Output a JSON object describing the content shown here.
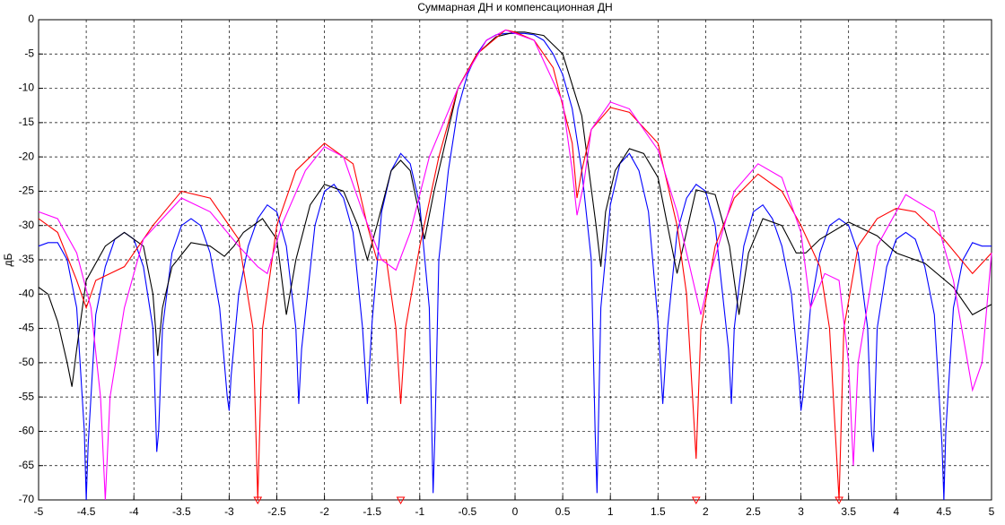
{
  "chart_data": {
    "type": "line",
    "title": "Суммарная ДН и компенсационная ДН",
    "y_label": "дБ",
    "xlim": [
      -5,
      5
    ],
    "ylim": [
      -70,
      0
    ],
    "xticks": [
      -5,
      -4.5,
      -4,
      -3.5,
      -3,
      -2.5,
      -2,
      -1.5,
      -1,
      -0.5,
      0,
      0.5,
      1,
      1.5,
      2,
      2.5,
      3,
      3.5,
      4,
      4.5,
      5
    ],
    "yticks": [
      -70,
      -65,
      -60,
      -55,
      -50,
      -45,
      -40,
      -35,
      -30,
      -25,
      -20,
      -15,
      -10,
      -5,
      0
    ],
    "grid": true,
    "series": [
      {
        "color": "#0000ff",
        "x": [
          -5,
          -4.9,
          -4.8,
          -4.7,
          -4.6,
          -4.52,
          -4.5,
          -4.48,
          -4.4,
          -4.3,
          -4.2,
          -4.1,
          -4,
          -3.9,
          -3.8,
          -3.76,
          -3.74,
          -3.7,
          -3.6,
          -3.5,
          -3.4,
          -3.3,
          -3.2,
          -3.1,
          -3.02,
          -3,
          -2.98,
          -2.9,
          -2.8,
          -2.7,
          -2.6,
          -2.5,
          -2.4,
          -2.3,
          -2.27,
          -2.24,
          -2.1,
          -2,
          -1.9,
          -1.8,
          -1.7,
          -1.6,
          -1.55,
          -1.5,
          -1.4,
          -1.3,
          -1.2,
          -1.1,
          -1,
          -0.9,
          -0.86,
          -0.84,
          -0.8,
          -0.7,
          -0.6,
          -0.5,
          -0.4,
          -0.3,
          -0.2,
          -0.1,
          0,
          0.1,
          0.2,
          0.3,
          0.4,
          0.5,
          0.6,
          0.7,
          0.8,
          0.84,
          0.86,
          0.9,
          1,
          1.1,
          1.2,
          1.3,
          1.4,
          1.5,
          1.55,
          1.6,
          1.7,
          1.8,
          1.9,
          2,
          2.1,
          2.24,
          2.27,
          2.3,
          2.4,
          2.5,
          2.6,
          2.7,
          2.8,
          2.9,
          2.98,
          3,
          3.02,
          3.1,
          3.2,
          3.3,
          3.4,
          3.5,
          3.6,
          3.7,
          3.74,
          3.76,
          3.8,
          3.9,
          4,
          4.1,
          4.2,
          4.3,
          4.4,
          4.48,
          4.5,
          4.52,
          4.6,
          4.7,
          4.8,
          4.9,
          5
        ],
        "values": [
          -33,
          -32.5,
          -32.5,
          -35,
          -42,
          -60,
          -70,
          -62,
          -43,
          -36,
          -32,
          -31,
          -32,
          -36,
          -45,
          -63,
          -60,
          -45,
          -34,
          -30,
          -29,
          -30,
          -34,
          -42,
          -55,
          -57,
          -52,
          -40,
          -33,
          -29,
          -27,
          -28,
          -33,
          -45,
          -56,
          -48,
          -30,
          -25,
          -24,
          -26,
          -31,
          -45,
          -56,
          -44,
          -28,
          -22,
          -19.5,
          -21,
          -27,
          -42,
          -69,
          -60,
          -35,
          -22,
          -13,
          -8,
          -5,
          -3,
          -2.2,
          -2,
          -2,
          -2,
          -2.2,
          -3,
          -5,
          -8,
          -13,
          -22,
          -35,
          -60,
          -69,
          -42,
          -27,
          -21,
          -19.5,
          -22,
          -28,
          -44,
          -56,
          -45,
          -31,
          -26,
          -24,
          -25,
          -30,
          -48,
          -56,
          -45,
          -33,
          -28,
          -27,
          -29,
          -33,
          -40,
          -52,
          -57,
          -55,
          -42,
          -34,
          -30,
          -29,
          -30,
          -34,
          -45,
          -60,
          -63,
          -45,
          -36,
          -32,
          -31,
          -32,
          -36,
          -43,
          -62,
          -70,
          -60,
          -42,
          -35,
          -32.5,
          -33,
          -33
        ]
      },
      {
        "color": "#000000",
        "x": [
          -5,
          -4.9,
          -4.8,
          -4.7,
          -4.65,
          -4.6,
          -4.5,
          -4.3,
          -4.1,
          -3.9,
          -3.8,
          -3.75,
          -3.7,
          -3.6,
          -3.4,
          -3.2,
          -3.05,
          -2.95,
          -2.85,
          -2.65,
          -2.5,
          -2.4,
          -2.3,
          -2.15,
          -2,
          -1.8,
          -1.65,
          -1.55,
          -1.45,
          -1.3,
          -1.2,
          -1.1,
          -0.95,
          -0.85,
          -0.6,
          -0.4,
          -0.2,
          0,
          0.1,
          0.3,
          0.5,
          0.7,
          0.85,
          0.9,
          0.95,
          1.05,
          1.2,
          1.35,
          1.5,
          1.6,
          1.7,
          1.9,
          2.1,
          2.25,
          2.35,
          2.45,
          2.6,
          2.8,
          2.95,
          3.05,
          3.2,
          3.5,
          3.8,
          4,
          4.3,
          4.6,
          4.8,
          5
        ],
        "values": [
          -39,
          -40,
          -44,
          -50,
          -53.5,
          -48,
          -38,
          -33,
          -31,
          -33,
          -40,
          -49,
          -42,
          -36,
          -32.5,
          -33,
          -34.5,
          -33,
          -31,
          -29,
          -32,
          -43,
          -35,
          -27,
          -24,
          -25,
          -30,
          -35,
          -30,
          -22,
          -20.5,
          -22,
          -32,
          -25,
          -10,
          -5,
          -2.5,
          -1.8,
          -1.8,
          -2.3,
          -5,
          -14,
          -30,
          -36,
          -28,
          -22,
          -18.8,
          -19.5,
          -23,
          -30,
          -37,
          -24.8,
          -25.5,
          -33,
          -43,
          -34,
          -29,
          -30,
          -34,
          -34,
          -32,
          -29.5,
          -31.5,
          -34,
          -35.5,
          -39,
          -43,
          -41.5
        ]
      },
      {
        "color": "#ff0000",
        "x": [
          -5,
          -4.8,
          -4.6,
          -4.5,
          -4.4,
          -4.1,
          -3.8,
          -3.5,
          -3.2,
          -2.9,
          -2.75,
          -2.7,
          -2.65,
          -2.5,
          -2.3,
          -2,
          -1.7,
          -1.55,
          -1.45,
          -1.35,
          -1.25,
          -1.2,
          -1.15,
          -1,
          -0.8,
          -0.6,
          -0.4,
          -0.1,
          0,
          0.2,
          0.4,
          0.6,
          0.65,
          0.7,
          0.8,
          1,
          1.2,
          1.5,
          1.7,
          1.8,
          1.9,
          1.95,
          2.1,
          2.3,
          2.55,
          2.8,
          3,
          3.2,
          3.3,
          3.4,
          3.45,
          3.6,
          3.8,
          4,
          4.2,
          4.5,
          4.8,
          5
        ],
        "values": [
          -29,
          -31,
          -38,
          -42,
          -38,
          -36,
          -30,
          -25,
          -26,
          -32,
          -45,
          -70,
          -45,
          -30,
          -22,
          -18,
          -21,
          -30,
          -35,
          -35,
          -45,
          -56,
          -45,
          -33,
          -20,
          -10,
          -5,
          -1.5,
          -1.8,
          -3,
          -7,
          -18,
          -26,
          -22,
          -16,
          -12.8,
          -13.5,
          -18,
          -30,
          -40,
          -64,
          -45,
          -33,
          -26,
          -22.5,
          -25,
          -30,
          -36,
          -45,
          -70,
          -45,
          -33,
          -29,
          -27.5,
          -28,
          -32,
          -37,
          -34
        ]
      },
      {
        "color": "#ff00ff",
        "x": [
          -5,
          -4.8,
          -4.6,
          -4.45,
          -4.35,
          -4.3,
          -4.25,
          -4.1,
          -3.9,
          -3.5,
          -3.2,
          -2.9,
          -2.7,
          -2.6,
          -2.45,
          -2.2,
          -2,
          -1.8,
          -1.6,
          -1.4,
          -1.25,
          -1.1,
          -0.9,
          -0.6,
          -0.3,
          -0.1,
          0.2,
          0.5,
          0.6,
          0.65,
          0.72,
          0.8,
          1,
          1.2,
          1.5,
          1.7,
          1.8,
          1.95,
          2.05,
          2.3,
          2.55,
          2.8,
          3,
          3.1,
          3.25,
          3.4,
          3.5,
          3.55,
          3.6,
          3.8,
          4.1,
          4.4,
          4.6,
          4.8,
          4.9,
          5
        ],
        "values": [
          -28,
          -29,
          -34,
          -42,
          -55,
          -70,
          -55,
          -42,
          -32,
          -26,
          -28,
          -33,
          -36,
          -37,
          -30,
          -22,
          -18.5,
          -20,
          -28,
          -35,
          -36.5,
          -31,
          -20,
          -10,
          -3,
          -1.5,
          -3,
          -12,
          -22,
          -28.5,
          -24,
          -16,
          -12,
          -13,
          -19,
          -28,
          -34,
          -43,
          -37,
          -25,
          -21,
          -23,
          -31,
          -42,
          -37,
          -38,
          -50,
          -65,
          -50,
          -33,
          -25.5,
          -28,
          -38,
          -54,
          -50,
          -34
        ]
      }
    ],
    "markers": {
      "color": "#ff0000",
      "x": [
        -2.7,
        -1.2,
        1.9,
        3.4
      ],
      "values": [
        -70,
        -70,
        -70,
        -70
      ]
    }
  }
}
